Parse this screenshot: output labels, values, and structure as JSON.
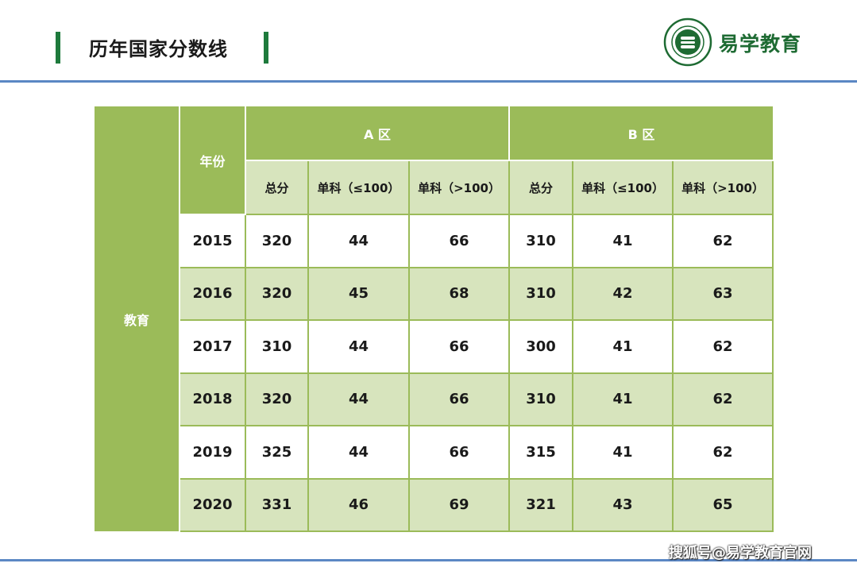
{
  "header": {
    "title": "历年国家分数线",
    "brand": "易学教育"
  },
  "footer": {
    "watermark": "搜狐号@易学教育官网"
  },
  "table": {
    "side_label": "教育",
    "year_header": "年份",
    "zone_a": "A 区",
    "zone_b": "B 区",
    "sub_headers": [
      "总分",
      "单科（≤100）",
      "单科（>100）",
      "总分",
      "单科（≤100）",
      "单科（>100）"
    ],
    "rows": [
      {
        "year": "2015",
        "a_total": "320",
        "a_le100": "44",
        "a_gt100": "66",
        "b_total": "310",
        "b_le100": "41",
        "b_gt100": "62"
      },
      {
        "year": "2016",
        "a_total": "320",
        "a_le100": "45",
        "a_gt100": "68",
        "b_total": "310",
        "b_le100": "42",
        "b_gt100": "63"
      },
      {
        "year": "2017",
        "a_total": "310",
        "a_le100": "44",
        "a_gt100": "66",
        "b_total": "300",
        "b_le100": "41",
        "b_gt100": "62"
      },
      {
        "year": "2018",
        "a_total": "320",
        "a_le100": "44",
        "a_gt100": "66",
        "b_total": "310",
        "b_le100": "41",
        "b_gt100": "62"
      },
      {
        "year": "2019",
        "a_total": "325",
        "a_le100": "44",
        "a_gt100": "66",
        "b_total": "315",
        "b_le100": "41",
        "b_gt100": "62"
      },
      {
        "year": "2020",
        "a_total": "331",
        "a_le100": "46",
        "a_gt100": "69",
        "b_total": "321",
        "b_le100": "43",
        "b_gt100": "65"
      }
    ]
  },
  "colors": {
    "accent_green": "#9bbb59",
    "light_green": "#d7e4bd",
    "rule_blue": "#5b87c4",
    "brand_green": "#1e6b33"
  }
}
